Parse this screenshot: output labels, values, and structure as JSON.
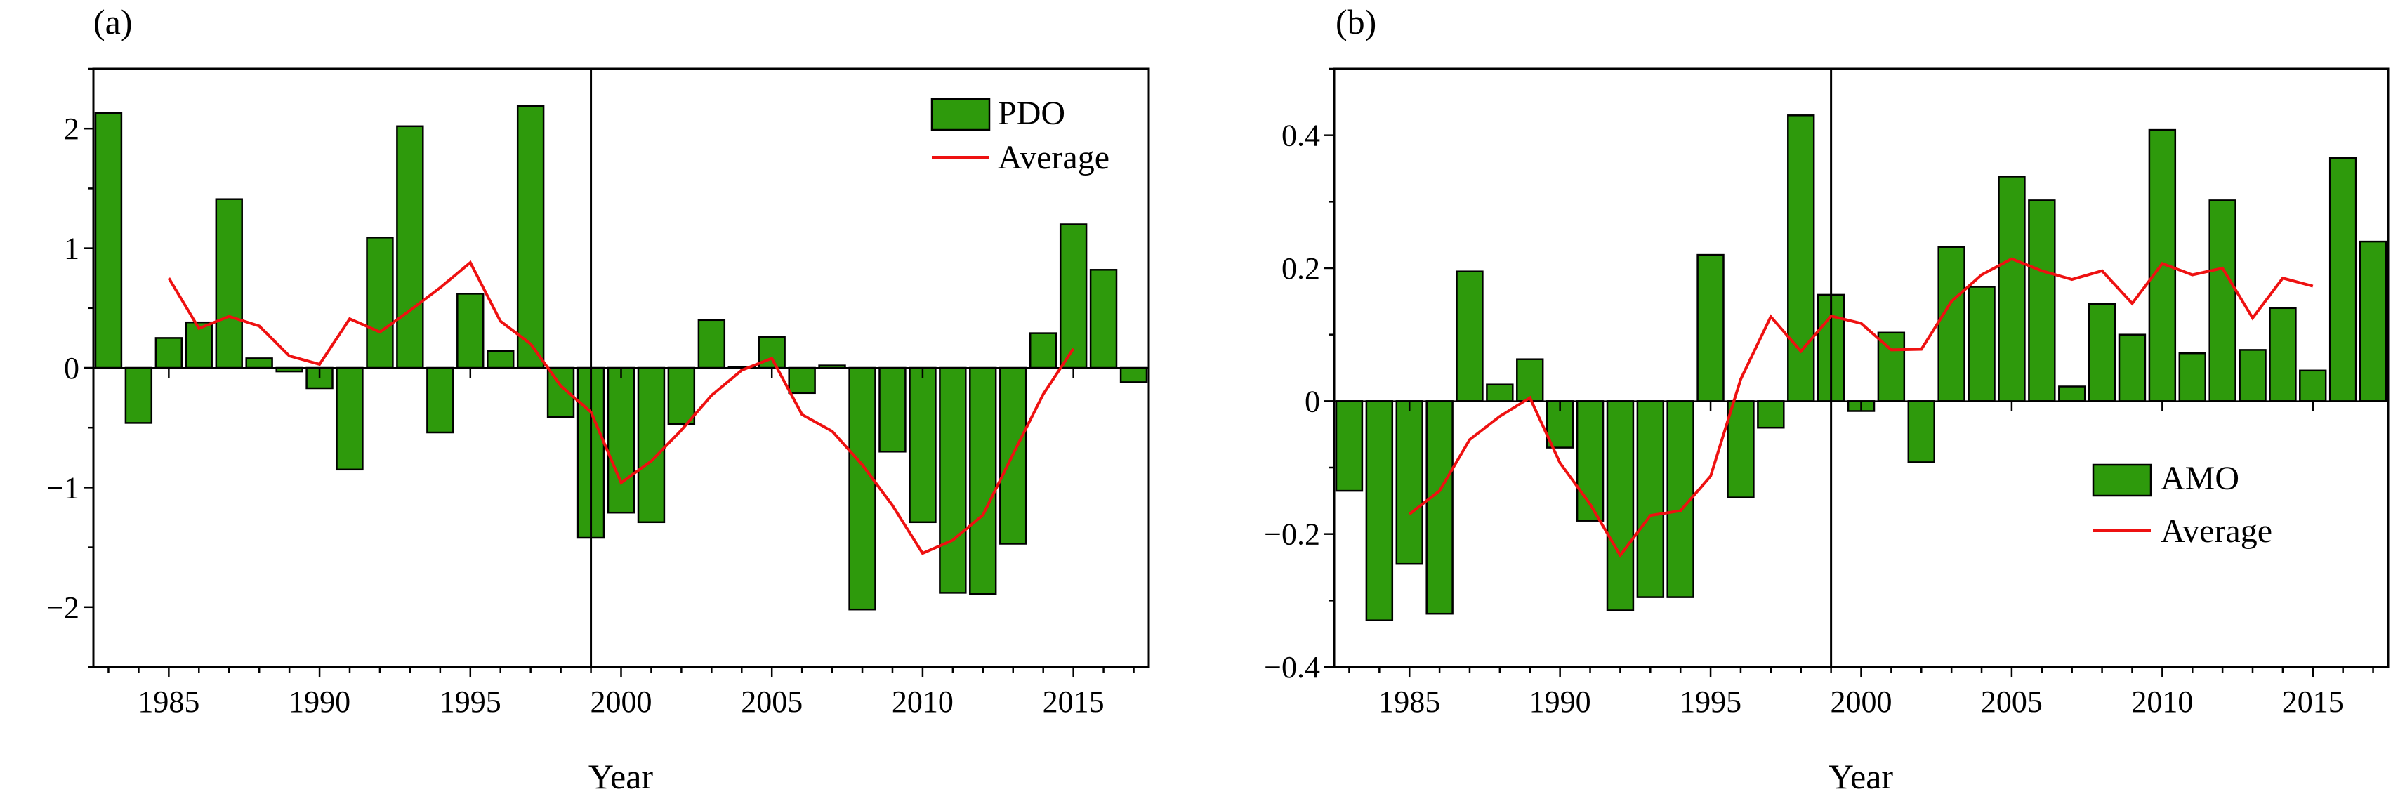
{
  "chart_data": [
    {
      "type": "bar",
      "panel_label": "(a)",
      "xlabel": "Year",
      "ylabel": "",
      "x": [
        1983,
        1984,
        1985,
        1986,
        1987,
        1988,
        1989,
        1990,
        1991,
        1992,
        1993,
        1994,
        1995,
        1996,
        1997,
        1998,
        1999,
        2000,
        2001,
        2002,
        2003,
        2004,
        2005,
        2006,
        2007,
        2008,
        2009,
        2010,
        2011,
        2012,
        2013,
        2014,
        2015,
        2016,
        2017
      ],
      "xlim": [
        1982.5,
        2017.5
      ],
      "ylim": [
        -2.5,
        2.5
      ],
      "xticks": [
        1985,
        1990,
        1995,
        2000,
        2005,
        2010,
        2015
      ],
      "xtick_labels": [
        "1985",
        "1990",
        "1995",
        "2000",
        "2005",
        "2010",
        "2015"
      ],
      "yticks": [
        -2,
        -1,
        0,
        1,
        2
      ],
      "ytick_labels": [
        "−2",
        "−1",
        "0",
        "1",
        "2"
      ],
      "vline": 1999,
      "legend_position": "top-right",
      "colors": {
        "bar": "#2e9a0c",
        "edge": "#000000",
        "line": "#ee1111"
      },
      "series": [
        {
          "name": "PDO",
          "kind": "bar",
          "values": [
            2.13,
            -0.46,
            0.25,
            0.38,
            1.41,
            0.08,
            -0.03,
            -0.17,
            -0.85,
            1.09,
            2.02,
            -0.54,
            0.62,
            0.14,
            2.19,
            -0.41,
            -1.42,
            -1.21,
            -1.29,
            -0.47,
            0.4,
            0.01,
            0.26,
            -0.21,
            0.02,
            -2.02,
            -0.7,
            -1.29,
            -1.88,
            -1.89,
            -1.47,
            0.29,
            1.2,
            0.82,
            -0.12
          ]
        },
        {
          "name": "Average",
          "kind": "line",
          "x": [
            1985,
            1986,
            1987,
            1988,
            1989,
            1990,
            1991,
            1992,
            1993,
            1994,
            1995,
            1996,
            1997,
            1998,
            1999,
            2000,
            2001,
            2002,
            2003,
            2004,
            2005,
            2006,
            2007,
            2008,
            2009,
            2010,
            2011,
            2012,
            2013,
            2014,
            2015
          ],
          "values": [
            0.75,
            0.33,
            0.43,
            0.35,
            0.1,
            0.03,
            0.41,
            0.3,
            0.48,
            0.67,
            0.88,
            0.39,
            0.2,
            -0.15,
            -0.37,
            -0.96,
            -0.78,
            -0.52,
            -0.23,
            -0.02,
            0.08,
            -0.39,
            -0.53,
            -0.81,
            -1.15,
            -1.55,
            -1.44,
            -1.23,
            -0.72,
            -0.22,
            0.16
          ]
        }
      ]
    },
    {
      "type": "bar",
      "panel_label": "(b)",
      "xlabel": "Year",
      "ylabel": "",
      "x": [
        1983,
        1984,
        1985,
        1986,
        1987,
        1988,
        1989,
        1990,
        1991,
        1992,
        1993,
        1994,
        1995,
        1996,
        1997,
        1998,
        1999,
        2000,
        2001,
        2002,
        2003,
        2004,
        2005,
        2006,
        2007,
        2008,
        2009,
        2010,
        2011,
        2012,
        2013,
        2014,
        2015,
        2016,
        2017
      ],
      "xlim": [
        1982.5,
        2017.5
      ],
      "ylim": [
        -0.4,
        0.5
      ],
      "xticks": [
        1985,
        1990,
        1995,
        2000,
        2005,
        2010,
        2015
      ],
      "xtick_labels": [
        "1985",
        "1990",
        "1995",
        "2000",
        "2005",
        "2010",
        "2015"
      ],
      "yticks": [
        -0.4,
        -0.2,
        0,
        0.2,
        0.4
      ],
      "ytick_labels": [
        "−0.4",
        "−0.2",
        "0",
        "0.2",
        "0.4"
      ],
      "vline": 1999,
      "legend_position": "lower-right",
      "colors": {
        "bar": "#2e9a0c",
        "edge": "#000000",
        "line": "#ee1111"
      },
      "series": [
        {
          "name": "AMO",
          "kind": "bar",
          "values": [
            -0.135,
            -0.33,
            -0.245,
            -0.32,
            0.195,
            0.025,
            0.063,
            -0.07,
            -0.18,
            -0.315,
            -0.295,
            -0.295,
            0.22,
            -0.145,
            -0.04,
            0.43,
            0.16,
            -0.015,
            0.103,
            -0.092,
            0.232,
            0.172,
            0.338,
            0.302,
            0.022,
            0.146,
            0.1,
            0.408,
            0.072,
            0.302,
            0.077,
            0.14,
            0.046,
            0.366,
            0.24
          ]
        },
        {
          "name": "Average",
          "kind": "line",
          "x": [
            1985,
            1986,
            1987,
            1988,
            1989,
            1990,
            1991,
            1992,
            1993,
            1994,
            1995,
            1996,
            1997,
            1998,
            1999,
            2000,
            2001,
            2002,
            2003,
            2004,
            2005,
            2006,
            2007,
            2008,
            2009,
            2010,
            2011,
            2012,
            2013,
            2014,
            2015
          ],
          "values": [
            -0.17,
            -0.135,
            -0.058,
            -0.023,
            0.005,
            -0.093,
            -0.155,
            -0.232,
            -0.172,
            -0.165,
            -0.113,
            0.033,
            0.127,
            0.075,
            0.128,
            0.117,
            0.077,
            0.078,
            0.15,
            0.19,
            0.214,
            0.196,
            0.183,
            0.196,
            0.147,
            0.207,
            0.19,
            0.2,
            0.125,
            0.185,
            0.173
          ]
        }
      ]
    }
  ]
}
